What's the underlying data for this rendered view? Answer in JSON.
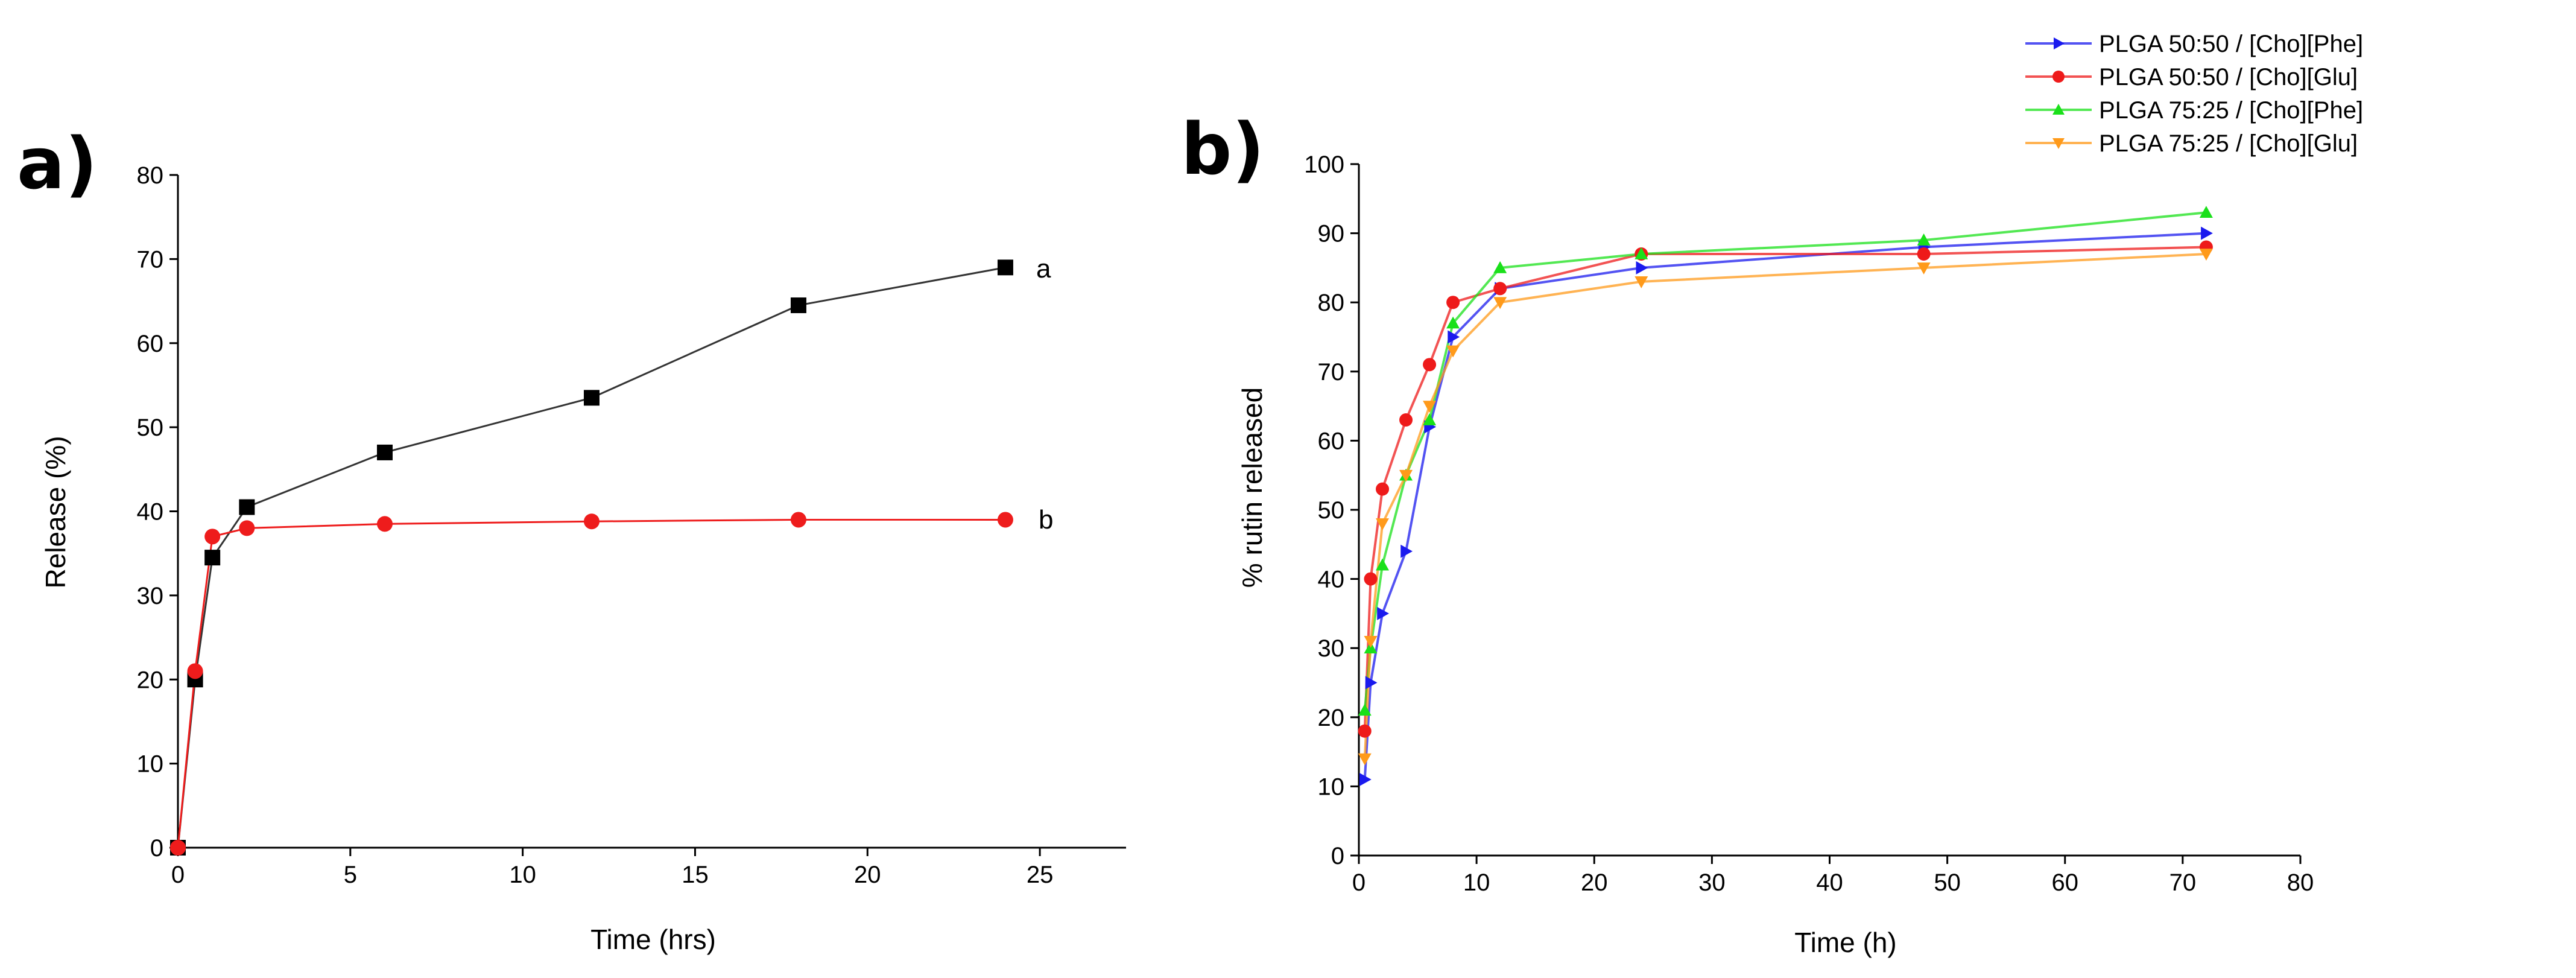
{
  "chart_data": [
    {
      "panel": "a)",
      "type": "line",
      "xlabel": "Time (hrs)",
      "ylabel": "Release (%)",
      "xlim": [
        0,
        27.5
      ],
      "ylim": [
        0,
        80
      ],
      "xticks": [
        0,
        5,
        10,
        15,
        20,
        25
      ],
      "yticks": [
        0,
        10,
        20,
        30,
        40,
        50,
        60,
        70,
        80
      ],
      "series": [
        {
          "name": "a",
          "color": "#000000",
          "line_color": "#333333",
          "marker": "square",
          "x": [
            0,
            0.5,
            1,
            2,
            6,
            12,
            18,
            24
          ],
          "values": [
            0,
            20,
            34.5,
            40.5,
            47,
            53.5,
            64.5,
            69
          ]
        },
        {
          "name": "b",
          "color": "#ee1c1c",
          "line_color": "#ee1c1c",
          "marker": "circle",
          "x": [
            0,
            0.5,
            1,
            2,
            6,
            12,
            18,
            24
          ],
          "values": [
            0,
            21,
            37,
            38,
            38.5,
            38.8,
            39,
            39
          ]
        }
      ]
    },
    {
      "panel": "b)",
      "type": "line",
      "xlabel": "Time (h)",
      "ylabel": "% rutin released",
      "xlim": [
        0,
        80
      ],
      "ylim": [
        0,
        100
      ],
      "xticks": [
        0,
        10,
        20,
        30,
        40,
        50,
        60,
        70,
        80
      ],
      "yticks": [
        0,
        10,
        20,
        30,
        40,
        50,
        60,
        70,
        80,
        90,
        100
      ],
      "legend_position": "top-right",
      "series": [
        {
          "name": "PLGA 50:50  /  [Cho][Phe]",
          "color": "#1a1aee",
          "marker": "right-triangle",
          "x": [
            0.5,
            1,
            2,
            4,
            6,
            8,
            12,
            24,
            48,
            72
          ],
          "values": [
            11,
            25,
            35,
            44,
            62,
            75,
            82,
            85,
            88,
            90
          ]
        },
        {
          "name": "PLGA 50:50  /  [Cho][Glu]",
          "color": "#ee1a1a",
          "marker": "circle",
          "x": [
            0.5,
            1,
            2,
            4,
            6,
            8,
            12,
            24,
            48,
            72
          ],
          "values": [
            18,
            40,
            53,
            63,
            71,
            80,
            82,
            87,
            87,
            88
          ]
        },
        {
          "name": "PLGA 75:25  /  [Cho][Phe]",
          "color": "#1ae01a",
          "marker": "up-triangle",
          "x": [
            0.5,
            1,
            2,
            4,
            6,
            8,
            12,
            24,
            48,
            72
          ],
          "values": [
            21,
            30,
            42,
            55,
            63,
            77,
            85,
            87,
            89,
            93
          ]
        },
        {
          "name": "PLGA 75:25  /  [Cho][Glu]",
          "color": "#ff9a1a",
          "marker": "down-triangle",
          "x": [
            0.5,
            1,
            2,
            4,
            6,
            8,
            12,
            24,
            48,
            72
          ],
          "values": [
            14,
            31,
            48,
            55,
            65,
            73,
            80,
            83,
            85,
            87
          ]
        }
      ]
    }
  ]
}
